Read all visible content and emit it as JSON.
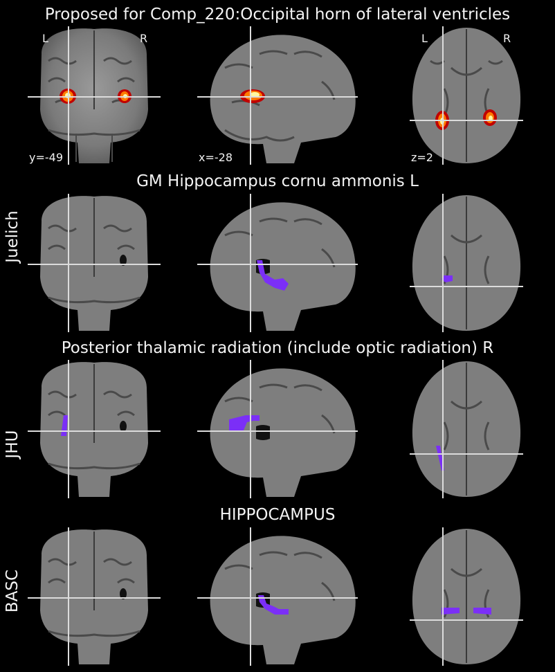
{
  "figure": {
    "rows": [
      {
        "id": "proposed",
        "title": "Proposed for Comp_220:Occipital horn of lateral ventricles",
        "side_label": "",
        "overlay_type": "heat",
        "coords": {
          "coronal": "y=-49",
          "sagittal": "x=-28",
          "axial": "z=2"
        },
        "orientation": {
          "left": "L",
          "right": "R"
        }
      },
      {
        "id": "juelich",
        "title": "GM Hippocampus cornu ammonis L",
        "side_label": "Juelich",
        "overlay_type": "atlas",
        "overlay_color": "#7b2ff7"
      },
      {
        "id": "jhu",
        "title": "Posterior thalamic radiation (include optic radiation) R",
        "side_label": "JHU",
        "overlay_type": "atlas",
        "overlay_color": "#7b2ff7"
      },
      {
        "id": "basc",
        "title": "HIPPOCAMPUS",
        "side_label": "BASC",
        "overlay_type": "atlas",
        "overlay_color": "#7b2ff7"
      }
    ],
    "colors": {
      "background": "#000000",
      "crosshair": "#dcdcdc",
      "heat_outer": "#c00000",
      "heat_mid": "#ff7a00",
      "heat_inner": "#fff8a0"
    }
  }
}
